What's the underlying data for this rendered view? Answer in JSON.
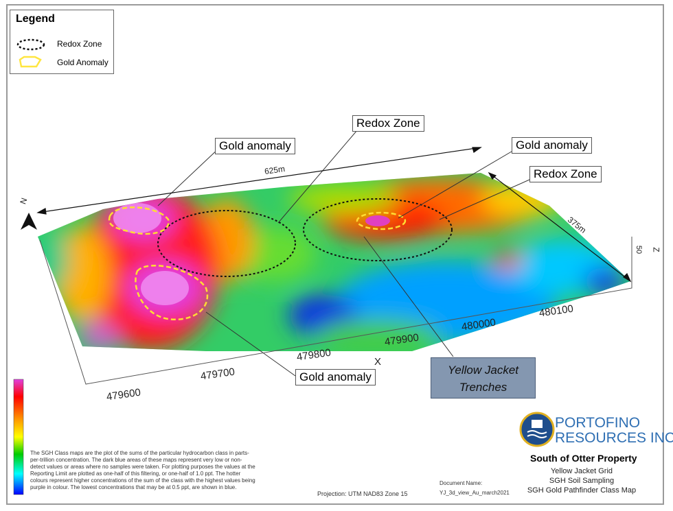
{
  "legend": {
    "title": "Legend",
    "items": [
      {
        "label": "Redox Zone",
        "symbol": "black dotted ellipse"
      },
      {
        "label": "Gold Anomaly",
        "symbol": "yellow dashed outline"
      }
    ]
  },
  "callouts": {
    "gold1": "Gold anomaly",
    "redox1": "Redox Zone",
    "gold2": "Gold anomaly",
    "redox2": "Redox Zone",
    "gold3": "Gold anomaly"
  },
  "trenches": {
    "line1": "Yellow Jacket",
    "line2": "Trenches"
  },
  "dimensions": {
    "length": "625m",
    "width": "375m"
  },
  "axes": {
    "x_label": "X",
    "north": "N",
    "z_label": "Z",
    "z_tick": "50",
    "x_ticks": [
      "479600",
      "479700",
      "479800",
      "479900",
      "480000",
      "480100"
    ]
  },
  "note": "The SGH Class maps are the plot of the sums of the particular hydrocarbon class in parts-per-trillion concentration. The dark blue areas of these maps represent very low or non-detect values or areas where no samples were taken. For plotting purposes the values at the Reporting Limit are plotted as one-half of this filtering, or one-half of 1.0 ppt. The hotter colours represent higher concentrations of the sum of the class with the highest values being purple in colour. The lowest concentrations that may be at 0.5 ppt, are shown in blue.",
  "projection": "Projection: UTM NAD83 Zone 15",
  "document": {
    "label": "Document Name:",
    "value": "YJ_3d_view_Au_march2021"
  },
  "company": {
    "line1": "PORTOFINO",
    "line2": "RESOURCES INC."
  },
  "title_block": {
    "title": "South of Otter Property",
    "lines": [
      "Yellow Jacket Grid",
      "SGH Soil Sampling",
      "SGH Gold Pathfinder Class Map"
    ]
  },
  "colors": {
    "colorbar": [
      "#e040e0",
      "#ff0000",
      "#ff9900",
      "#ffff00",
      "#00cc00",
      "#00ffff",
      "#0000ff"
    ],
    "callout_box": "#8497b0",
    "logo": "#2f6fb3"
  }
}
